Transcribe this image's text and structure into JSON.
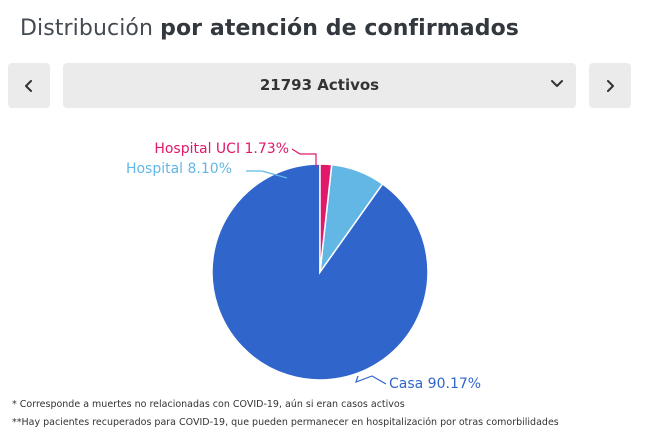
{
  "header": {
    "title_light": "Distribución",
    "title_bold": "por atención de confirmados"
  },
  "controls": {
    "prev_icon": "chevron-left-icon",
    "selected": "21793 Activos",
    "dropdown_icon": "chevron-down-icon",
    "next_icon": "chevron-right-icon"
  },
  "chart_data": {
    "type": "pie",
    "slices": [
      {
        "label": "Casa 90.17%",
        "value": 90.17,
        "color": "#3066cc"
      },
      {
        "label": "Hospital 8.10%",
        "value": 8.1,
        "color": "#63b7e5"
      },
      {
        "label": "Hospital UCI 1.73%",
        "value": 1.73,
        "color": "#e0196b"
      }
    ]
  },
  "footnotes": [
    "* Corresponde a muertes no relacionadas con COVID-19, aún si eran casos activos",
    "**Hay pacientes recuperados para COVID-19, que pueden permanecer en hospitalización por otras comorbilidades"
  ]
}
